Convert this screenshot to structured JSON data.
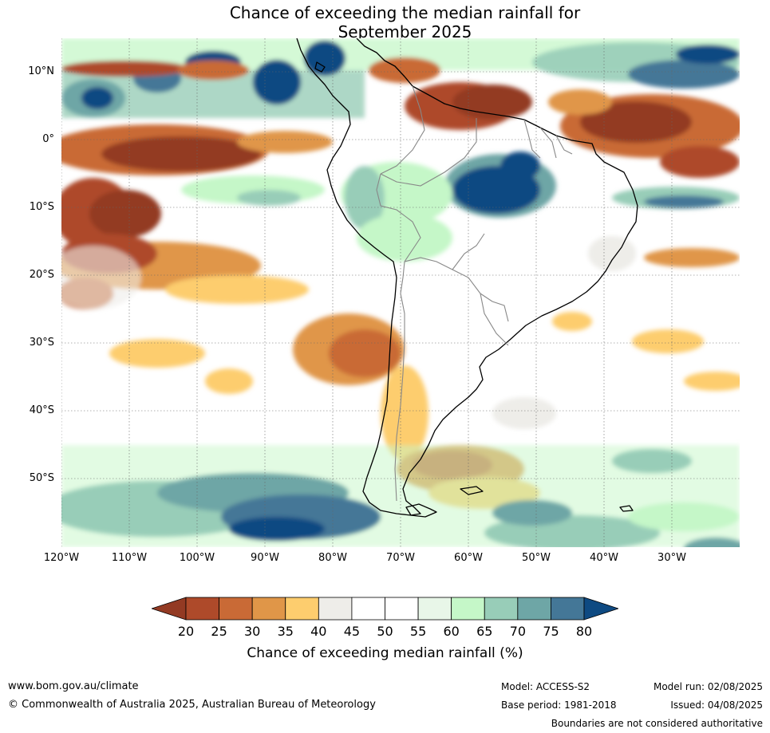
{
  "title": {
    "line1": "Chance of exceeding the median rainfall for",
    "line2": "September 2025"
  },
  "map": {
    "latitude_labels": [
      "10°N",
      "0°",
      "10°S",
      "20°S",
      "30°S",
      "40°S",
      "50°S"
    ],
    "longitude_labels": [
      "120°W",
      "110°W",
      "100°W",
      "90°W",
      "80°W",
      "70°W",
      "60°W",
      "50°W",
      "40°W",
      "30°W"
    ],
    "region": "South America and surrounding oceans"
  },
  "colorbar": {
    "ticks": [
      "20",
      "25",
      "30",
      "35",
      "40",
      "45",
      "50",
      "55",
      "60",
      "65",
      "70",
      "75",
      "80"
    ],
    "colors": [
      "#933a23",
      "#ae4a2a",
      "#c96a36",
      "#e09648",
      "#fdcd6e",
      "#eeede9",
      "#ffffff",
      "#ffffff",
      "#e8f6e8",
      "#c5f7c8",
      "#98cdb8",
      "#6ea6a6",
      "#447797",
      "#0e4a82"
    ],
    "label": "Chance of exceeding median rainfall (%)"
  },
  "footer": {
    "website": "www.bom.gov.au/climate",
    "copyright": "© Commonwealth of Australia 2025, Australian Bureau of Meteorology",
    "model": "Model: ACCESS-S2",
    "base_period": "Base period: 1981-2018",
    "model_run": "Model run: 02/08/2025",
    "issued": "Issued: 04/08/2025",
    "disclaimer": "Boundaries are not considered authoritative"
  }
}
